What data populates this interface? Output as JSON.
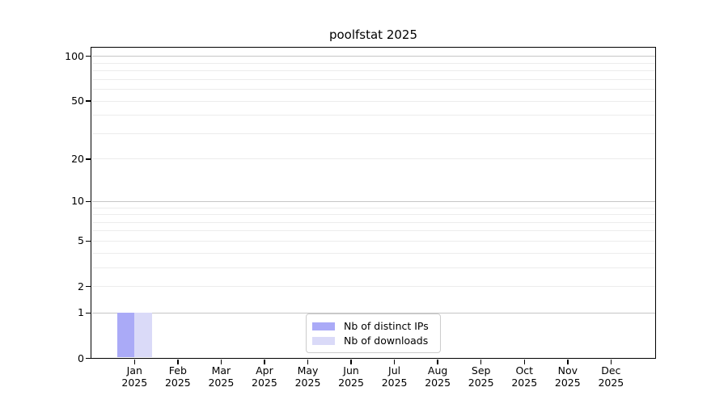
{
  "figure": {
    "background": "#ffffff"
  },
  "chart_data": {
    "type": "bar",
    "title": "poolfstat 2025",
    "categories": [
      "Jan",
      "Feb",
      "Mar",
      "Apr",
      "May",
      "Jun",
      "Jul",
      "Aug",
      "Sep",
      "Oct",
      "Nov",
      "Dec"
    ],
    "x_year_label": "2025",
    "series": [
      {
        "name": "Nb of distinct IPs",
        "color": "#aaaaf7",
        "values": [
          1,
          0,
          0,
          0,
          0,
          0,
          0,
          0,
          0,
          0,
          0,
          0
        ]
      },
      {
        "name": "Nb of downloads",
        "color": "#dadaf8",
        "values": [
          1,
          0,
          0,
          0,
          0,
          0,
          0,
          0,
          0,
          0,
          0,
          0
        ]
      }
    ],
    "xlabel": "",
    "ylabel": "",
    "yticks": [
      0,
      1,
      2,
      5,
      10,
      20,
      50,
      100
    ],
    "major_gridlines": [
      1,
      10,
      100
    ],
    "minor_gridlines": [
      2,
      3,
      4,
      5,
      6,
      7,
      8,
      9,
      20,
      30,
      40,
      50,
      60,
      70,
      80,
      90
    ],
    "yscale": "log10(1+y)",
    "ylim": [
      0,
      115
    ],
    "grid": "horizontal only",
    "legend_position": "lower center (inside plot)",
    "colors": {
      "axis": "#000000",
      "text": "#000000",
      "major_grid": "#c6c6c6",
      "minor_grid": "#ececec",
      "legend_border": "#cccccc",
      "background": "#ffffff"
    }
  }
}
